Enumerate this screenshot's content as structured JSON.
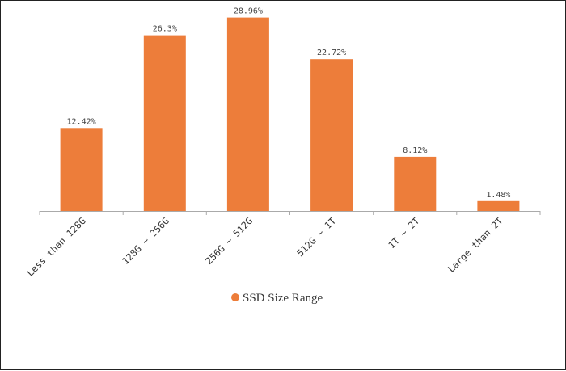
{
  "colors": {
    "bar": "#ed7d3a",
    "axis": "#aaaaaa",
    "text": "#333333"
  },
  "chart_data": {
    "type": "bar",
    "title": "",
    "xlabel": "",
    "ylabel": "",
    "categories": [
      "Less than 128G",
      "128G ~ 256G",
      "256G ~ 512G",
      "512G ~ 1T",
      "1T ~ 2T",
      "Large than 2T"
    ],
    "series": [
      {
        "name": "SSD Size Range",
        "values": [
          12.42,
          26.3,
          28.96,
          22.72,
          8.12,
          1.48
        ],
        "labels": [
          "12.42%",
          "26.3%",
          "28.96%",
          "22.72%",
          "8.12%",
          "1.48%"
        ]
      }
    ],
    "ylim": [
      0,
      30
    ],
    "grid": false,
    "legend": "bottom-center"
  }
}
